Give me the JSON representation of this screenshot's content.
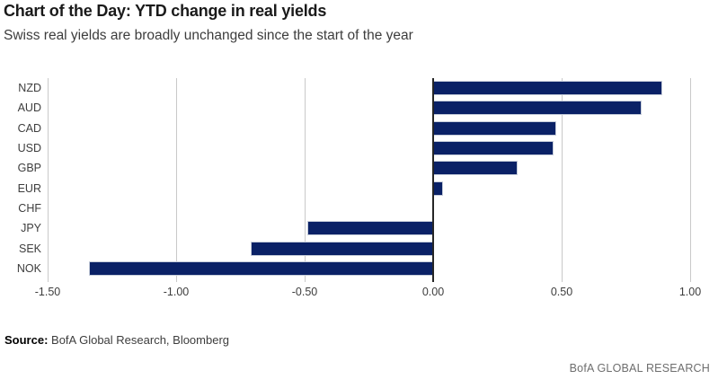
{
  "header": {
    "title": "Chart of the Day: YTD change in real yields",
    "subtitle": "Swiss real yields are broadly unchanged since the start of the year"
  },
  "chart_data": {
    "type": "bar",
    "orientation": "horizontal",
    "title": "Chart of the Day: YTD change in real yields",
    "subtitle": "Swiss real yields are broadly unchanged since the start of the year",
    "categories": [
      "NZD",
      "AUD",
      "CAD",
      "USD",
      "GBP",
      "EUR",
      "CHF",
      "JPY",
      "SEK",
      "NOK"
    ],
    "values": [
      0.89,
      0.81,
      0.48,
      0.47,
      0.33,
      0.04,
      0.0,
      -0.49,
      -0.71,
      -1.34
    ],
    "xlabel": "",
    "ylabel": "",
    "xlim": [
      -1.5,
      1.0
    ],
    "xticks": [
      -1.5,
      -1.0,
      -0.5,
      0.0,
      0.5,
      1.0
    ],
    "xtick_labels": [
      "-1.50",
      "-1.00",
      "-0.50",
      "0.00",
      "0.50",
      "1.00"
    ],
    "grid": true,
    "legend": false,
    "colors": {
      "bar": "#0a2166",
      "gridline": "#c9c9c9",
      "zero_axis": "#262626",
      "tick_label": "#3d3d3d"
    }
  },
  "footer": {
    "source_label": "Source:",
    "source_text": " BofA Global Research, Bloomberg",
    "brand": "BofA GLOBAL RESEARCH"
  }
}
